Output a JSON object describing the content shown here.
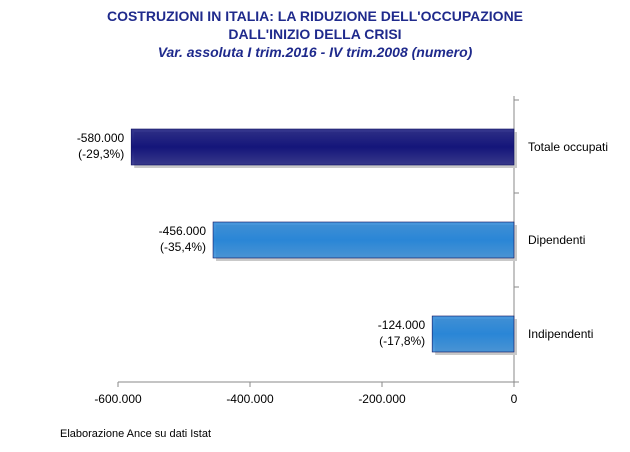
{
  "chart_data": {
    "type": "bar",
    "orientation": "horizontal",
    "title_line1": "COSTRUZIONI IN ITALIA: LA RIDUZIONE DELL'OCCUPAZIONE",
    "title_line2": "DALL'INIZIO DELLA CRISI",
    "subtitle": "Var. assoluta I trim.2016 - IV trim.2008 (numero)",
    "categories": [
      "Totale occupati",
      "Dipendenti",
      "Indipendenti"
    ],
    "values": [
      -580000,
      -456000,
      -124000
    ],
    "value_labels": [
      "-580.000",
      "-456.000",
      "-124.000"
    ],
    "pct_labels": [
      "(-29,3%)",
      "(-35,4%)",
      "(-17,8%)"
    ],
    "bar_colors": [
      "#14157a",
      "#2a86d6",
      "#2a86d6"
    ],
    "xlim": [
      -600000,
      0
    ],
    "x_ticks": [
      -600000,
      -400000,
      -200000,
      0
    ],
    "x_tick_labels": [
      "-600.000",
      "-400.000",
      "-200.000",
      "0"
    ],
    "grid": false
  },
  "footer": "Elaborazione Ance su dati Istat"
}
